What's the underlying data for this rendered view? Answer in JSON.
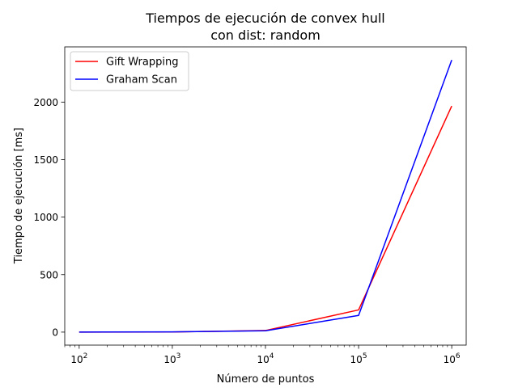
{
  "chart_data": {
    "type": "line",
    "title": [
      "Tiempos de ejecución de convex hull",
      "con dist: random"
    ],
    "xlabel": "Número de puntos",
    "ylabel": "Tiempo de ejecución [ms]",
    "xscale": "log",
    "xlim": [
      70,
      1430000
    ],
    "ylim": [
      -113,
      2480
    ],
    "x": [
      100,
      1000,
      10000,
      100000,
      1000000
    ],
    "x_ticks": [
      {
        "value": 100,
        "base": "10",
        "exp": "2"
      },
      {
        "value": 1000,
        "base": "10",
        "exp": "3"
      },
      {
        "value": 10000,
        "base": "10",
        "exp": "4"
      },
      {
        "value": 100000,
        "base": "10",
        "exp": "5"
      },
      {
        "value": 1000000,
        "base": "10",
        "exp": "6"
      }
    ],
    "y_ticks": [
      0,
      500,
      1000,
      1500,
      2000
    ],
    "grid": false,
    "legend_position": "top-left",
    "series": [
      {
        "name": "Gift Wrapping",
        "color": "#ff0000",
        "values": [
          0.3,
          1.5,
          14,
          193,
          1966
        ]
      },
      {
        "name": "Graham Scan",
        "color": "#0000ff",
        "values": [
          0.4,
          2,
          12,
          145,
          2366
        ]
      }
    ]
  }
}
